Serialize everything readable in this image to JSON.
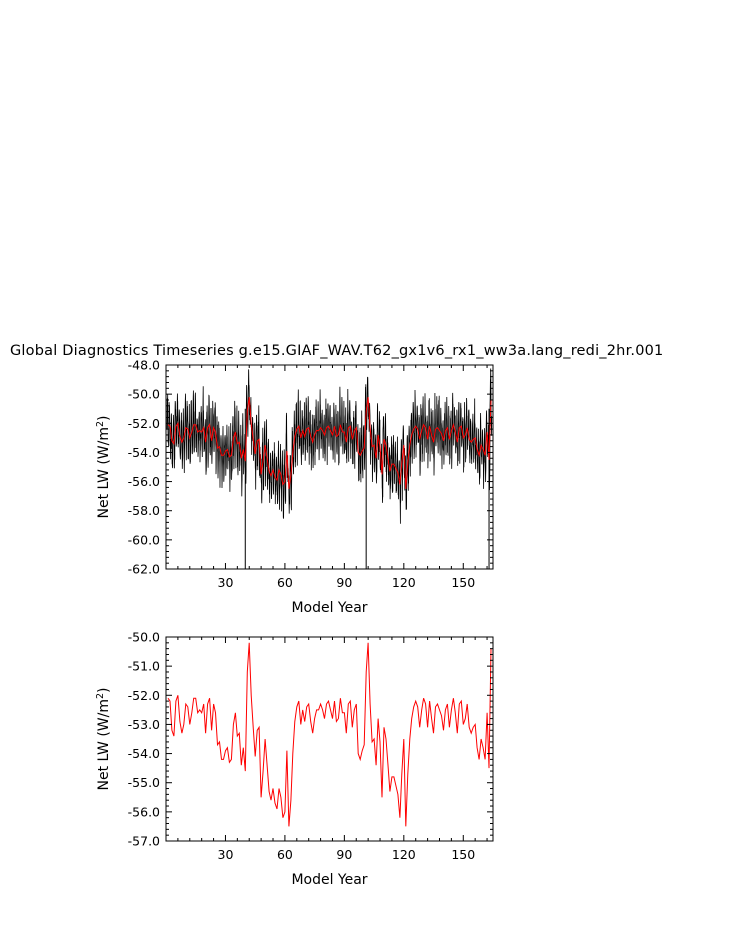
{
  "page": {
    "title": "Global Diagnostics Timeseries g.e15.GIAF_WAV.T62_gx1v6_rx1_ww3a.lang_redi_2hr.001"
  },
  "chart_data": [
    {
      "type": "line",
      "xlabel": "Model Year",
      "ylabel": "Net LW (W/m",
      "ylabel_sup": "2",
      "ylabel_close": ")",
      "xlim": [
        0,
        165
      ],
      "ylim": [
        -62.0,
        -48.0
      ],
      "xticks": [
        "30",
        "60",
        "90",
        "120",
        "150"
      ],
      "yticks": [
        "-62.0",
        "-60.0",
        "-58.0",
        "-56.0",
        "-54.0",
        "-52.0",
        "-50.0",
        "-48.0"
      ],
      "series": [
        {
          "color": "#000000",
          "kind": "monthly",
          "values_ref": "annual_means",
          "monthly_spread": 1.8
        },
        {
          "color": "#ff0000",
          "kind": "annual",
          "values_ref": "annual_means"
        }
      ]
    },
    {
      "type": "line",
      "xlabel": "Model Year",
      "ylabel": "Net LW (W/m",
      "ylabel_sup": "2",
      "ylabel_close": ")",
      "xlim": [
        0,
        165
      ],
      "ylim": [
        -57.0,
        -50.0
      ],
      "xticks": [
        "30",
        "60",
        "90",
        "120",
        "150"
      ],
      "yticks": [
        "-57.0",
        "-56.0",
        "-55.0",
        "-54.0",
        "-53.0",
        "-52.0",
        "-51.0",
        "-50.0"
      ],
      "series": [
        {
          "color": "#ff0000",
          "kind": "annual",
          "values_ref": "annual_means"
        }
      ]
    }
  ],
  "annual_means": {
    "x_start": 1,
    "values": [
      -52.1,
      -52.2,
      -53.2,
      -53.4,
      -52.2,
      -52.0,
      -52.9,
      -53.3,
      -53.0,
      -52.3,
      -52.4,
      -53.0,
      -52.6,
      -52.1,
      -52.1,
      -52.6,
      -52.5,
      -52.6,
      -52.3,
      -53.3,
      -52.3,
      -52.1,
      -53.2,
      -52.3,
      -52.6,
      -53.7,
      -53.6,
      -54.2,
      -54.2,
      -53.9,
      -53.8,
      -54.3,
      -54.2,
      -53.0,
      -52.6,
      -53.4,
      -53.3,
      -54.4,
      -53.8,
      -54.6,
      -51.2,
      -50.2,
      -52.0,
      -53.1,
      -54.1,
      -53.2,
      -53.1,
      -55.5,
      -54.6,
      -53.5,
      -54.4,
      -55.3,
      -55.6,
      -55.2,
      -55.7,
      -55.9,
      -55.2,
      -55.5,
      -56.2,
      -56.0,
      -53.9,
      -56.5,
      -55.6,
      -54.0,
      -52.9,
      -52.4,
      -52.2,
      -53.0,
      -52.5,
      -52.9,
      -52.4,
      -52.3,
      -52.9,
      -53.3,
      -52.8,
      -52.5,
      -52.5,
      -52.3,
      -52.5,
      -52.8,
      -52.3,
      -52.2,
      -52.5,
      -52.8,
      -52.2,
      -52.9,
      -52.8,
      -52.1,
      -52.6,
      -52.6,
      -53.3,
      -52.3,
      -52.2,
      -53.1,
      -52.5,
      -52.3,
      -54.0,
      -54.2,
      -53.9,
      -53.7,
      -51.2,
      -50.2,
      -52.3,
      -53.6,
      -53.5,
      -54.4,
      -52.8,
      -53.6,
      -55.5,
      -53.1,
      -53.5,
      -54.4,
      -55.3,
      -54.8,
      -54.8,
      -55.1,
      -55.4,
      -56.2,
      -54.7,
      -53.5,
      -56.5,
      -54.7,
      -53.5,
      -52.8,
      -52.4,
      -52.2,
      -52.4,
      -53.1,
      -52.5,
      -52.1,
      -52.3,
      -53.1,
      -52.2,
      -52.8,
      -53.3,
      -52.4,
      -52.3,
      -52.5,
      -52.7,
      -53.2,
      -52.5,
      -52.3,
      -53.1,
      -52.5,
      -52.1,
      -52.6,
      -53.3,
      -52.3,
      -52.2,
      -53.0,
      -52.8,
      -52.3,
      -53.1,
      -53.3,
      -53.1,
      -53.0,
      -53.8,
      -54.2,
      -53.5,
      -53.8,
      -54.2,
      -52.6,
      -54.5,
      -50.4
    ]
  }
}
